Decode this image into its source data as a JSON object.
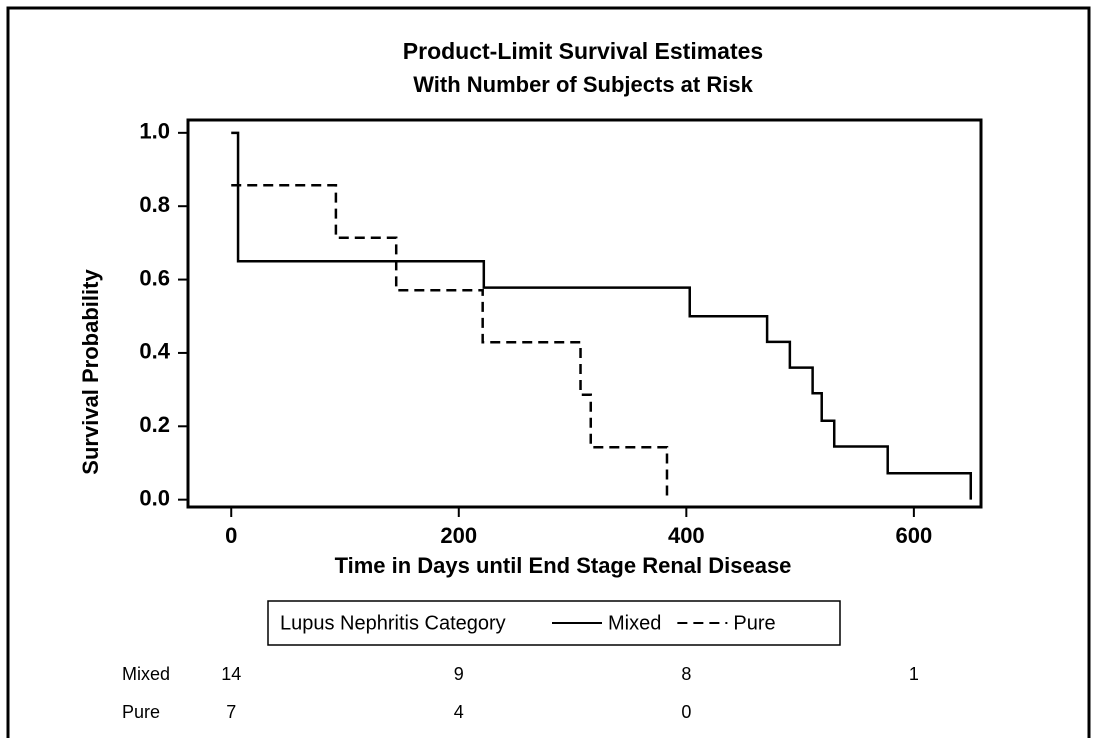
{
  "chart_data": {
    "type": "step",
    "title": "Product-Limit  Survival Estimates",
    "subtitle": "With Number of Subjects at Risk",
    "x_label": "Time in Days until End Stage Renal Disease",
    "y_label": "Survival Probability",
    "xlim": [
      -38,
      659
    ],
    "ylim": [
      -0.02,
      1.035
    ],
    "xticks": [
      0,
      200,
      400,
      600
    ],
    "yticks": [
      {
        "value": 0,
        "label": "0.0"
      },
      {
        "value": 0.2,
        "label": "0.2"
      },
      {
        "value": 0.4,
        "label": "0.4"
      },
      {
        "value": 0.6,
        "label": "0.6"
      },
      {
        "value": 0.8,
        "label": "0.8"
      },
      {
        "value": 1,
        "label": "1.0"
      }
    ],
    "legend_title": "Lupus Nephritis Category",
    "series": [
      {
        "name": "Mixed",
        "color": "#000000",
        "dash": "solid",
        "x": [
          0,
          6,
          6,
          222,
          222,
          403,
          403,
          471,
          471,
          491,
          491,
          511,
          511,
          519,
          519,
          530,
          530,
          577,
          577,
          650,
          650
        ],
        "values": [
          1,
          1,
          0.65,
          0.65,
          0.578,
          0.578,
          0.5,
          0.5,
          0.43,
          0.43,
          0.36,
          0.36,
          0.29,
          0.29,
          0.215,
          0.215,
          0.145,
          0.145,
          0.072,
          0.072,
          0
        ]
      },
      {
        "name": "Pure",
        "color": "#000000",
        "dash": "dashed",
        "x": [
          0,
          92,
          92,
          145,
          145,
          221,
          221,
          307,
          307,
          316,
          316,
          383,
          383
        ],
        "values": [
          0.857,
          0.857,
          0.714,
          0.714,
          0.571,
          0.571,
          0.429,
          0.429,
          0.286,
          0.286,
          0.143,
          0.143,
          0
        ]
      }
    ],
    "at_risk": {
      "times": [
        0,
        200,
        400,
        600
      ],
      "rows": [
        {
          "name": "Mixed",
          "values": [
            14,
            9,
            8,
            1
          ]
        },
        {
          "name": "Pure",
          "values": [
            7,
            4,
            0
          ]
        }
      ]
    }
  }
}
